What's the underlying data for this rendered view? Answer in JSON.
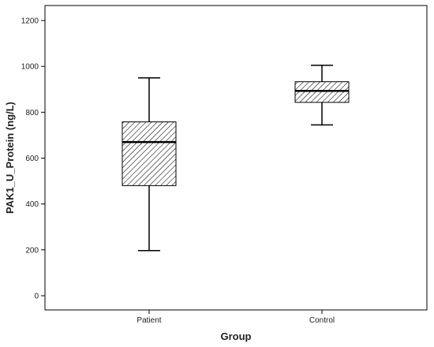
{
  "chart_data": {
    "type": "boxplot",
    "xlabel": "Group",
    "ylabel": "PAK1_U_Protein (ng/L)",
    "ylim": [
      0,
      1250
    ],
    "yticks": [
      0,
      200,
      400,
      600,
      800,
      1000,
      1200
    ],
    "categories": [
      "Patient",
      "Control"
    ],
    "boxes": [
      {
        "category": "Patient",
        "min": 197,
        "q1": 480,
        "median": 670,
        "q3": 758,
        "max": 950
      },
      {
        "category": "Control",
        "min": 745,
        "q1": 843,
        "median": 893,
        "q3": 933,
        "max": 1005
      }
    ],
    "fill_pattern": "diagonal-hatch",
    "grid": false,
    "colors": {
      "background": "#ffffff",
      "plot_background": "#ffffff",
      "line": "#000000",
      "hatch": "#000000"
    }
  }
}
